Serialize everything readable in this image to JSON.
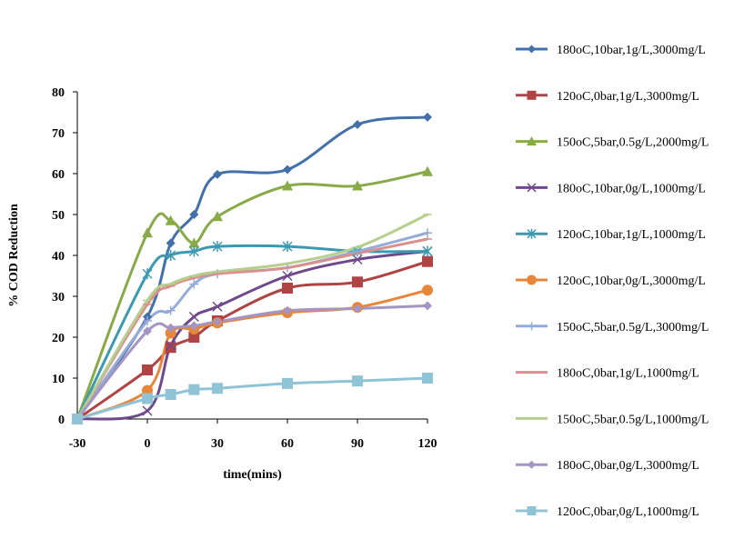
{
  "chart_data": {
    "type": "line",
    "title": "",
    "xlabel": "time(mins)",
    "ylabel": "% COD Reduction",
    "x_ticks": [
      "-30",
      "0",
      "30",
      "60",
      "90",
      "120"
    ],
    "y_ticks": [
      "0",
      "10",
      "20",
      "30",
      "40",
      "50",
      "60",
      "70",
      "80"
    ],
    "xlim": [
      -30,
      120
    ],
    "ylim": [
      0,
      80
    ],
    "grid": false,
    "legend_position": "right",
    "series": [
      {
        "name": "180oC,10bar,1g/L,3000mg/L",
        "color": "#4470aa",
        "marker": "diamond",
        "x": [
          -30,
          0,
          10,
          20,
          30,
          60,
          90,
          120
        ],
        "y": [
          0,
          25,
          43,
          50,
          59.8,
          61,
          72,
          73.8
        ]
      },
      {
        "name": "120oC,0bar,1g/L,3000mg/L",
        "color": "#b04445",
        "marker": "square",
        "x": [
          -30,
          0,
          10,
          20,
          30,
          60,
          90,
          120
        ],
        "y": [
          0,
          12,
          17.5,
          20,
          24,
          32,
          33.5,
          38.5
        ]
      },
      {
        "name": "150oC,5bar,0.5g/L,2000mg/L",
        "color": "#88aa48",
        "marker": "triangle",
        "x": [
          -30,
          0,
          10,
          20,
          30,
          60,
          90,
          120
        ],
        "y": [
          0,
          45.5,
          48.5,
          43,
          49.5,
          57,
          57,
          60.5
        ]
      },
      {
        "name": "180oC,10bar,0g/L,1000mg/L",
        "color": "#6e4a8c",
        "marker": "x",
        "x": [
          -30,
          0,
          10,
          20,
          30,
          60,
          90,
          120
        ],
        "y": [
          0,
          2,
          18,
          25,
          27.5,
          35,
          39,
          41
        ]
      },
      {
        "name": "120oC,10bar,1g/L,1000mg/L",
        "color": "#3b9ab2",
        "marker": "star",
        "x": [
          -30,
          0,
          10,
          20,
          30,
          60,
          90,
          120
        ],
        "y": [
          0,
          35.5,
          40,
          41,
          42.2,
          42.2,
          41,
          41
        ]
      },
      {
        "name": "120oC,10bar,0g/L,3000mg/L",
        "color": "#e8873a",
        "marker": "circle",
        "x": [
          -30,
          0,
          10,
          20,
          30,
          60,
          90,
          120
        ],
        "y": [
          0,
          7,
          21,
          22,
          23.5,
          26,
          27.3,
          31.5
        ]
      },
      {
        "name": "150oC,5bar,0.5g/L,3000mg/L",
        "color": "#95abd8",
        "marker": "plus",
        "x": [
          -30,
          0,
          10,
          20,
          30,
          60,
          90,
          120
        ],
        "y": [
          0,
          24,
          26.5,
          33,
          35.5,
          37,
          41,
          45.5
        ]
      },
      {
        "name": "180oC,0bar,1g/L,1000mg/L",
        "color": "#d9908e",
        "marker": "dash",
        "x": [
          -30,
          0,
          10,
          20,
          30,
          60,
          90,
          120
        ],
        "y": [
          0,
          28,
          32.5,
          34.5,
          35.5,
          37,
          40.5,
          44
        ]
      },
      {
        "name": "150oC,5bar,0.5g/L,1000mg/L",
        "color": "#b7cf8e",
        "marker": "dash",
        "x": [
          -30,
          0,
          10,
          20,
          30,
          60,
          90,
          120
        ],
        "y": [
          0,
          29,
          33,
          35,
          36,
          38,
          42,
          50
        ]
      },
      {
        "name": "180oC,0bar,0g/L,3000mg/L",
        "color": "#a495c5",
        "marker": "diamond",
        "x": [
          -30,
          0,
          10,
          20,
          30,
          60,
          90,
          120
        ],
        "y": [
          0,
          21.5,
          22.3,
          22.8,
          23.8,
          26.5,
          27,
          27.7
        ]
      },
      {
        "name": "120oC,0bar,0g/L,1000mg/L",
        "color": "#8fc4d6",
        "marker": "square",
        "x": [
          -30,
          0,
          10,
          20,
          30,
          60,
          90,
          120
        ],
        "y": [
          0,
          5,
          6,
          7.2,
          7.5,
          8.7,
          9.3,
          10
        ]
      }
    ]
  }
}
